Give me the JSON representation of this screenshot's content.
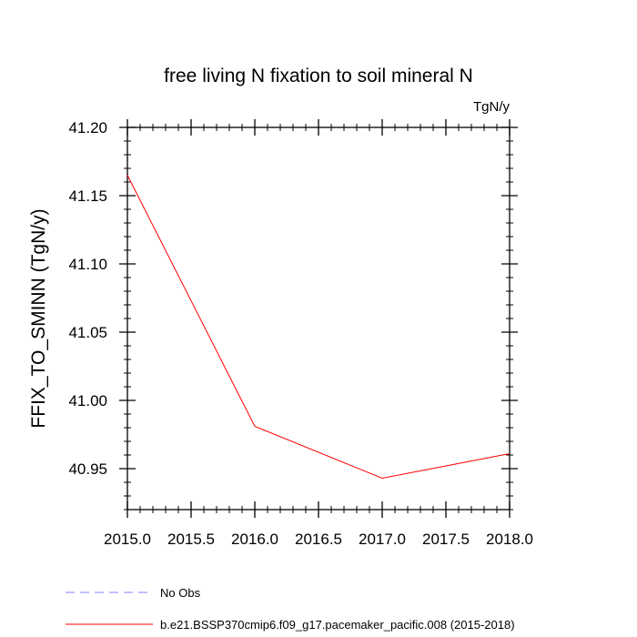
{
  "chart_data": {
    "type": "line",
    "title": "free living N fixation to soil mineral N",
    "units_label": "TgN/y",
    "ylabel": "FFIX_TO_SMINN  (TgN/y)",
    "xlabel": "",
    "xlim": [
      2015.0,
      2018.0
    ],
    "ylim": [
      40.92,
      41.2
    ],
    "x_ticks": [
      "2015.0",
      "2015.5",
      "2016.0",
      "2016.5",
      "2017.0",
      "2017.5",
      "2018.0"
    ],
    "y_ticks": [
      "40.95",
      "41.00",
      "41.05",
      "41.10",
      "41.15",
      "41.20"
    ],
    "x_minor_step": 0.1,
    "y_minor_step": 0.01,
    "grid": false,
    "series": [
      {
        "name": "b.e21.BSSP370cmip6.f09_g17.pacemaker_pacific.008 (2015-2018)",
        "color": "#ff0000",
        "style": "solid",
        "x": [
          2015.0,
          2016.0,
          2017.0,
          2018.0
        ],
        "values": [
          41.165,
          40.981,
          40.943,
          40.961
        ]
      }
    ],
    "legend": [
      {
        "label": "No Obs",
        "color": "#8080ff",
        "style": "dashed"
      },
      {
        "label": "b.e21.BSSP370cmip6.f09_g17.pacemaker_pacific.008 (2015-2018)",
        "color": "#ff0000",
        "style": "solid"
      }
    ]
  }
}
